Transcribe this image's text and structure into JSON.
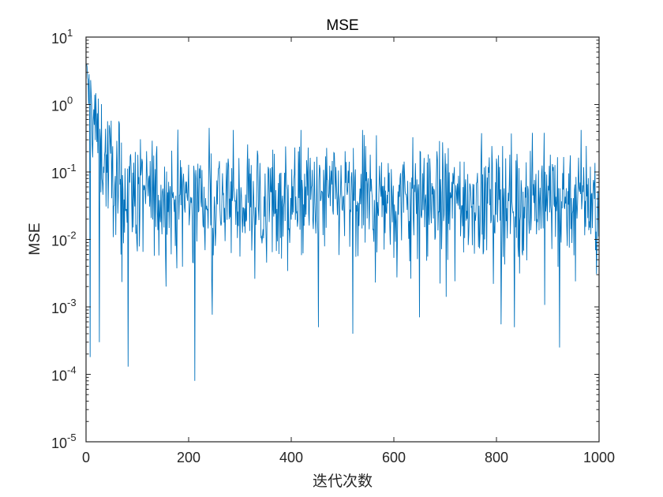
{
  "chart_data": {
    "type": "line",
    "title": "MSE",
    "xlabel": "迭代次数",
    "ylabel": "MSE",
    "xlim": [
      0,
      1000
    ],
    "ylim": [
      1e-05,
      10
    ],
    "yscale": "log",
    "grid": false,
    "legend": null,
    "xticks": [
      0,
      200,
      400,
      600,
      800,
      1000
    ],
    "xtick_labels": [
      "0",
      "200",
      "400",
      "600",
      "800",
      "1000"
    ],
    "yticks": [
      1e-05,
      0.0001,
      0.001,
      0.01,
      0.1,
      1.0,
      10.0
    ],
    "ytick_labels": [
      {
        "base": "10",
        "exp": "-5"
      },
      {
        "base": "10",
        "exp": "-4"
      },
      {
        "base": "10",
        "exp": "-3"
      },
      {
        "base": "10",
        "exp": "-2"
      },
      {
        "base": "10",
        "exp": "-1"
      },
      {
        "base": "10",
        "exp": "0"
      },
      {
        "base": "10",
        "exp": "1"
      }
    ],
    "series": [
      {
        "name": "MSE",
        "color": "#0072BD",
        "n_points": 1000,
        "description": "Noisy MSE per iteration: starts near 4 at iteration 1, decays to ~0.05 baseline by ~100 iterations, then fluctuates between ~1e-3 and ~0.4",
        "envelope": {
          "start_value": 4.0,
          "decay_iterations": 100,
          "baseline": 0.05
        },
        "notable_points": [
          {
            "x": 1,
            "y": 4.0
          },
          {
            "x": 8,
            "y": 0.00018
          },
          {
            "x": 26,
            "y": 0.0003
          },
          {
            "x": 82,
            "y": 0.00013
          },
          {
            "x": 212,
            "y": 8e-05
          },
          {
            "x": 240,
            "y": 0.45
          },
          {
            "x": 453,
            "y": 0.0005
          },
          {
            "x": 520,
            "y": 0.0004
          },
          {
            "x": 566,
            "y": 0.35
          },
          {
            "x": 650,
            "y": 0.0007
          },
          {
            "x": 835,
            "y": 0.0005
          },
          {
            "x": 870,
            "y": 0.38
          },
          {
            "x": 923,
            "y": 0.00025
          }
        ]
      }
    ]
  }
}
